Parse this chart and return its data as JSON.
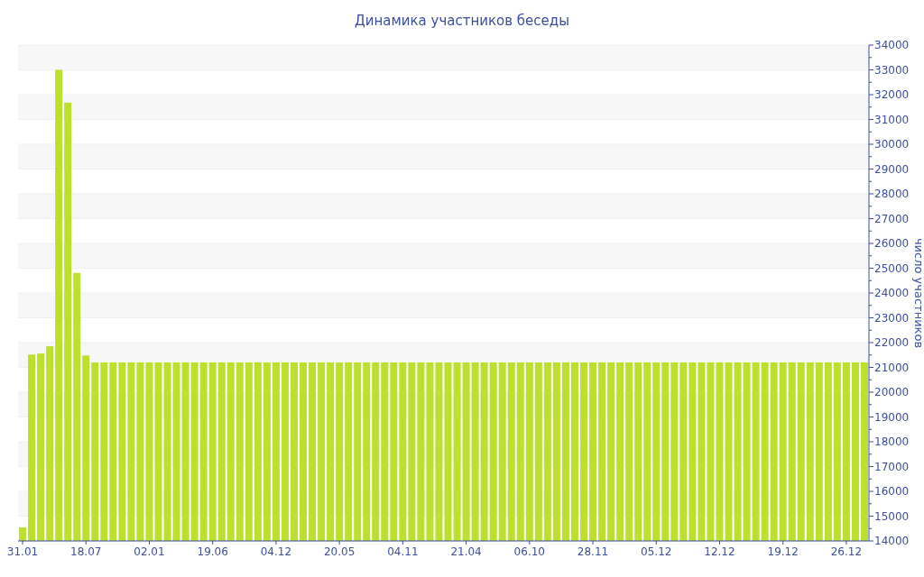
{
  "chart_data": {
    "type": "bar",
    "title": "Динамика участников беседы",
    "y2label": "число участников",
    "categories": [
      "31.01",
      null,
      null,
      null,
      null,
      null,
      null,
      "18.07",
      null,
      null,
      null,
      null,
      null,
      null,
      "02.01",
      null,
      null,
      null,
      null,
      null,
      null,
      "19.06",
      null,
      null,
      null,
      null,
      null,
      null,
      "04.12",
      null,
      null,
      null,
      null,
      null,
      null,
      "20.05",
      null,
      null,
      null,
      null,
      null,
      null,
      "04.11",
      null,
      null,
      null,
      null,
      null,
      null,
      "21.04",
      null,
      null,
      null,
      null,
      null,
      null,
      "06.10",
      null,
      null,
      null,
      null,
      null,
      null,
      "28.11",
      null,
      null,
      null,
      null,
      null,
      null,
      "05.12",
      null,
      null,
      null,
      null,
      null,
      null,
      "12.12",
      null,
      null,
      null,
      null,
      null,
      null,
      "19.12",
      null,
      null,
      null,
      null,
      null,
      null,
      "26.12",
      null,
      null
    ],
    "series": [
      {
        "color": "#bde02f",
        "axis": "y2",
        "values": [
          14550,
          21520,
          21560,
          21850,
          33000,
          31680,
          24810,
          21480,
          21200,
          21200,
          21200,
          21200,
          21200,
          21200,
          21200,
          21200,
          21200,
          21200,
          21200,
          21200,
          21200,
          21200,
          21200,
          21200,
          21200,
          21200,
          21200,
          21200,
          21200,
          21200,
          21200,
          21200,
          21200,
          21200,
          21200,
          21200,
          21200,
          21200,
          21200,
          21200,
          21200,
          21200,
          21200,
          21200,
          21200,
          21200,
          21200,
          21200,
          21200,
          21200,
          21200,
          21200,
          21200,
          21200,
          21200,
          21200,
          21200,
          21200,
          21200,
          21200,
          21200,
          21200,
          21200,
          21200,
          21200,
          21200,
          21200,
          21200,
          21200,
          21200,
          21200,
          21200,
          21200,
          21200,
          21200,
          21200,
          21200,
          21200,
          21200,
          21200,
          21200,
          21200,
          21200,
          21200,
          21200,
          21200,
          21200,
          21200,
          21200,
          21200,
          21200,
          21200,
          21200,
          21200
        ]
      }
    ],
    "y2lim": [
      14000,
      34000
    ],
    "y2ticks": [
      14000,
      {
        "value": 14500,
        "label": null
      },
      15000,
      {
        "value": 15500,
        "label": null
      },
      16000,
      {
        "value": 16500,
        "label": null
      },
      17000,
      {
        "value": 17500,
        "label": null
      },
      18000,
      {
        "value": 18500,
        "label": null
      },
      19000,
      {
        "value": 19500,
        "label": null
      },
      20000,
      {
        "value": 20500,
        "label": null
      },
      21000,
      {
        "value": 21500,
        "label": null
      },
      22000,
      {
        "value": 22500,
        "label": null
      },
      23000,
      {
        "value": 23500,
        "label": null
      },
      24000,
      {
        "value": 24500,
        "label": null
      },
      25000,
      {
        "value": 25500,
        "label": null
      },
      26000,
      {
        "value": 26500,
        "label": null
      },
      27000,
      {
        "value": 27500,
        "label": null
      },
      28000,
      {
        "value": 28500,
        "label": null
      },
      29000,
      {
        "value": 29500,
        "label": null
      },
      30000,
      {
        "value": 30500,
        "label": null
      },
      31000,
      {
        "value": 31500,
        "label": null
      },
      32000,
      {
        "value": 32500,
        "label": null
      },
      33000,
      {
        "value": 33500,
        "label": null
      },
      34000
    ],
    "grid": "y"
  }
}
